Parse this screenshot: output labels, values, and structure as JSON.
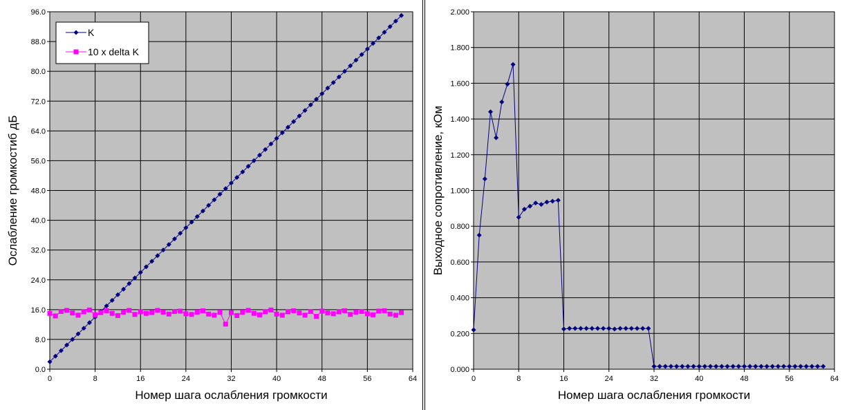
{
  "chart_data": [
    {
      "type": "line",
      "xlabel": "Номер шага ослабления громкости",
      "ylabel": "Ослабление громкостиб  дБ",
      "xlim": [
        0,
        64
      ],
      "ylim": [
        0,
        96
      ],
      "x_ticks": [
        0,
        8,
        16,
        24,
        32,
        40,
        48,
        56,
        64
      ],
      "y_ticks": [
        "0.0",
        "8.0",
        "16.0",
        "24.0",
        "32.0",
        "40.0",
        "48.0",
        "56.0",
        "64.0",
        "72.0",
        "80.0",
        "88.0",
        "96.0"
      ],
      "grid": true,
      "legend": "top-left",
      "x": [
        0,
        1,
        2,
        3,
        4,
        5,
        6,
        7,
        8,
        9,
        10,
        11,
        12,
        13,
        14,
        15,
        16,
        17,
        18,
        19,
        20,
        21,
        22,
        23,
        24,
        25,
        26,
        27,
        28,
        29,
        30,
        31,
        32,
        33,
        34,
        35,
        36,
        37,
        38,
        39,
        40,
        41,
        42,
        43,
        44,
        45,
        46,
        47,
        48,
        49,
        50,
        51,
        52,
        53,
        54,
        55,
        56,
        57,
        58,
        59,
        60,
        61,
        62
      ],
      "series": [
        {
          "name": "K",
          "color": "#000080",
          "marker": "diamond",
          "values": [
            2.0,
            3.5,
            5.0,
            6.5,
            8.0,
            9.5,
            11.0,
            12.5,
            14.0,
            15.5,
            17.0,
            18.5,
            20.0,
            21.5,
            23.0,
            24.5,
            26.0,
            27.5,
            29.0,
            30.5,
            32.0,
            33.5,
            35.0,
            36.5,
            38.0,
            39.5,
            41.0,
            42.5,
            44.0,
            45.5,
            47.0,
            48.5,
            50.0,
            51.5,
            53.0,
            54.5,
            56.0,
            57.5,
            59.0,
            60.5,
            62.0,
            63.5,
            65.0,
            66.5,
            68.0,
            69.5,
            71.0,
            72.5,
            74.0,
            75.5,
            77.0,
            78.5,
            80.0,
            81.5,
            83.0,
            84.5,
            86.0,
            87.5,
            89.0,
            90.5,
            92.0,
            93.5,
            95.0
          ]
        },
        {
          "name": "10 x delta K",
          "color": "#ff00ff",
          "marker": "square",
          "values": [
            15.0,
            14.3,
            15.5,
            15.8,
            15.1,
            14.5,
            15.4,
            15.9,
            14.6,
            15.2,
            15.7,
            15.0,
            14.4,
            15.3,
            15.8,
            14.7,
            15.4,
            15.0,
            15.2,
            15.8,
            15.3,
            14.8,
            15.5,
            15.6,
            14.9,
            14.7,
            15.3,
            15.7,
            14.8,
            14.5,
            15.3,
            12.1,
            15.2,
            14.4,
            15.3,
            15.8,
            15.0,
            14.6,
            15.4,
            15.9,
            14.8,
            14.5,
            15.4,
            15.7,
            15.1,
            14.5,
            15.5,
            14.2,
            15.6,
            15.1,
            14.9,
            15.4,
            15.7,
            14.7,
            15.3,
            15.5,
            14.9,
            14.6,
            15.6,
            15.7,
            14.8,
            14.5,
            15.2
          ]
        }
      ]
    },
    {
      "type": "line",
      "xlabel": "Номер шага ослабления громкости",
      "ylabel": "Выходное сопротивление, кОм",
      "xlim": [
        0,
        64
      ],
      "ylim": [
        0,
        2
      ],
      "x_ticks": [
        0,
        8,
        16,
        24,
        32,
        40,
        48,
        56,
        64
      ],
      "y_ticks": [
        "0.000",
        "0.200",
        "0.400",
        "0.600",
        "0.800",
        "1.000",
        "1.200",
        "1.400",
        "1.600",
        "1.800",
        "2.000"
      ],
      "grid": true,
      "x": [
        0,
        1,
        2,
        3,
        4,
        5,
        6,
        7,
        8,
        9,
        10,
        11,
        12,
        13,
        14,
        15,
        16,
        17,
        18,
        19,
        20,
        21,
        22,
        23,
        24,
        25,
        26,
        27,
        28,
        29,
        30,
        31,
        32,
        33,
        34,
        35,
        36,
        37,
        38,
        39,
        40,
        41,
        42,
        43,
        44,
        45,
        46,
        47,
        48,
        49,
        50,
        51,
        52,
        53,
        54,
        55,
        56,
        57,
        58,
        59,
        60,
        61,
        62
      ],
      "series": [
        {
          "color": "#000080",
          "marker": "diamond",
          "values": [
            0.22,
            0.75,
            1.065,
            1.44,
            1.295,
            1.495,
            1.595,
            1.705,
            0.85,
            0.895,
            0.912,
            0.93,
            0.922,
            0.935,
            0.94,
            0.945,
            0.225,
            0.228,
            0.228,
            0.228,
            0.228,
            0.228,
            0.228,
            0.228,
            0.228,
            0.225,
            0.228,
            0.228,
            0.228,
            0.228,
            0.228,
            0.228,
            0.016,
            0.016,
            0.016,
            0.016,
            0.016,
            0.016,
            0.016,
            0.016,
            0.016,
            0.016,
            0.016,
            0.016,
            0.016,
            0.016,
            0.016,
            0.016,
            0.016,
            0.016,
            0.016,
            0.016,
            0.016,
            0.016,
            0.016,
            0.016,
            0.016,
            0.016,
            0.016,
            0.016,
            0.016,
            0.016,
            0.016
          ]
        }
      ]
    }
  ]
}
